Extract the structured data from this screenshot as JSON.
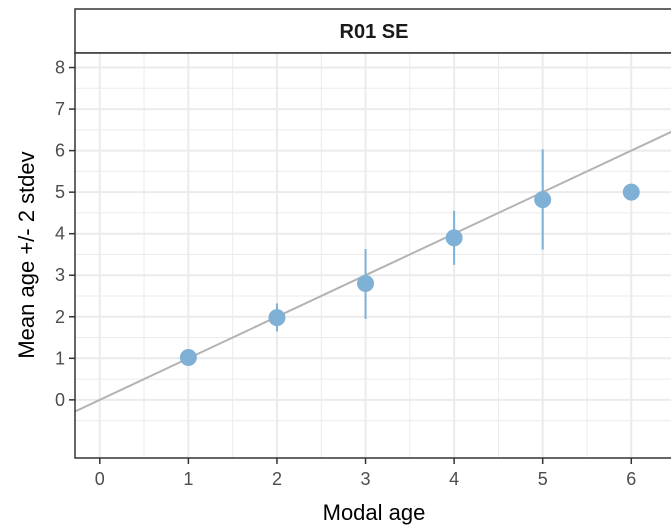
{
  "chart_data": {
    "type": "scatter",
    "facet_label": "R01 SE",
    "xlabel": "Modal age",
    "ylabel": "Mean age +/- 2 stdev",
    "xlim": [
      -0.28,
      6.55
    ],
    "ylim": [
      -1.4,
      8.35
    ],
    "x_ticks": [
      "0",
      "1",
      "2",
      "3",
      "4",
      "5",
      "6"
    ],
    "y_ticks": [
      "0",
      "1",
      "2",
      "3",
      "4",
      "5",
      "6",
      "7",
      "8"
    ],
    "grid": true,
    "points": [
      {
        "x": 1,
        "y": 1.02,
        "lower": 1.02,
        "upper": 1.02
      },
      {
        "x": 2,
        "y": 1.98,
        "lower": 1.65,
        "upper": 2.32
      },
      {
        "x": 3,
        "y": 2.8,
        "lower": 1.95,
        "upper": 3.63
      },
      {
        "x": 4,
        "y": 3.9,
        "lower": 3.25,
        "upper": 4.55
      },
      {
        "x": 5,
        "y": 4.82,
        "lower": 3.62,
        "upper": 6.03
      },
      {
        "x": 6,
        "y": 5.0,
        "lower": 5.0,
        "upper": 5.0
      }
    ],
    "reference_line": {
      "intercept": 0,
      "slope": 1
    },
    "colors": {
      "point": "#7fb0d5",
      "errorbar": "#7fb0d5",
      "reference_line": "#b3b3b3",
      "grid": "#ebebeb",
      "panel_border": "#333333"
    }
  }
}
